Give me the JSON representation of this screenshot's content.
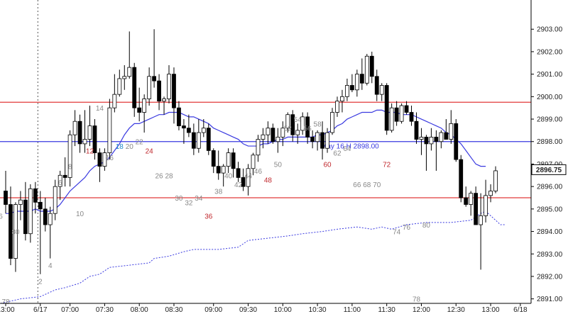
{
  "chart_data": {
    "type": "candlestick",
    "title": "",
    "xlabel": "",
    "ylabel": "",
    "ylim": [
      2890.8,
      2904.3
    ],
    "y_ticks": [
      2891.0,
      2892.0,
      2893.0,
      2894.0,
      2895.0,
      2896.0,
      2897.0,
      2898.0,
      2899.0,
      2900.0,
      2901.0,
      2902.0,
      2903.0
    ],
    "current_price": "2896.75",
    "x_ticks": [
      {
        "label": "13:00",
        "bar": 0
      },
      {
        "label": "6/17",
        "bar": 7
      },
      {
        "label": "07:00",
        "bar": 13
      },
      {
        "label": "07:30",
        "bar": 20
      },
      {
        "label": "08:00",
        "bar": 27
      },
      {
        "label": "08:30",
        "bar": 34
      },
      {
        "label": "09:00",
        "bar": 42
      },
      {
        "label": "09:30",
        "bar": 49
      },
      {
        "label": "10:00",
        "bar": 56
      },
      {
        "label": "10:30",
        "bar": 63
      },
      {
        "label": "11:00",
        "bar": 70
      },
      {
        "label": "11:30",
        "bar": 77
      },
      {
        "label": "12:00",
        "bar": 84
      },
      {
        "label": "12:30",
        "bar": 91
      },
      {
        "label": "13:00",
        "bar": 98
      },
      {
        "label": "6/18",
        "bar": 104
      }
    ],
    "session_divider_bar": 7,
    "horizontal_lines": [
      {
        "y": 2899.75,
        "color": "#e23a3a"
      },
      {
        "y": 2898.0,
        "color": "#3a3ae0",
        "label": "May 16 H 2898.00"
      },
      {
        "y": 2895.5,
        "color": "#e23a3a"
      }
    ],
    "candles": [
      [
        2895.8,
        2896.7,
        2894.8,
        2895.2
      ],
      [
        2895.2,
        2896.0,
        2892.5,
        2892.8
      ],
      [
        2892.8,
        2895.3,
        2892.2,
        2895.2
      ],
      [
        2895.2,
        2895.8,
        2894.5,
        2895.4
      ],
      [
        2895.4,
        2896.2,
        2893.6,
        2893.9
      ],
      [
        2893.9,
        2896.1,
        2893.5,
        2895.9
      ],
      [
        2895.9,
        2896.2,
        2894.8,
        2895.3
      ],
      [
        2895.3,
        2895.8,
        2892.1,
        2895.0
      ],
      [
        2895.0,
        2895.5,
        2894.0,
        2894.3
      ],
      [
        2894.3,
        2895.1,
        2892.8,
        2894.8
      ],
      [
        2894.8,
        2896.3,
        2894.5,
        2896.0
      ],
      [
        2896.0,
        2896.7,
        2895.4,
        2896.5
      ],
      [
        2896.5,
        2897.3,
        2896.0,
        2896.4
      ],
      [
        2896.4,
        2898.5,
        2896.0,
        2898.3
      ],
      [
        2898.3,
        2899.4,
        2897.8,
        2898.9
      ],
      [
        2898.9,
        2899.2,
        2897.5,
        2897.9
      ],
      [
        2897.9,
        2899.4,
        2897.5,
        2898.1
      ],
      [
        2898.1,
        2899.6,
        2897.8,
        2898.7
      ],
      [
        2898.7,
        2899.0,
        2897.2,
        2897.5
      ],
      [
        2897.5,
        2897.7,
        2896.2,
        2896.9
      ],
      [
        2896.9,
        2897.7,
        2896.7,
        2897.5
      ],
      [
        2897.5,
        2899.9,
        2897.2,
        2899.5
      ],
      [
        2899.5,
        2901.0,
        2899.3,
        2900.1
      ],
      [
        2900.1,
        2901.2,
        2900.0,
        2900.8
      ],
      [
        2900.8,
        2901.4,
        2900.3,
        2900.9
      ],
      [
        2900.9,
        2902.9,
        2900.8,
        2901.3
      ],
      [
        2901.3,
        2901.5,
        2899.1,
        2899.5
      ],
      [
        2899.5,
        2900.4,
        2898.9,
        2899.3
      ],
      [
        2899.3,
        2900.1,
        2898.4,
        2899.9
      ],
      [
        2899.9,
        2901.3,
        2899.6,
        2900.9
      ],
      [
        2900.9,
        2903.0,
        2900.4,
        2900.7
      ],
      [
        2900.7,
        2901.0,
        2899.4,
        2899.8
      ],
      [
        2899.8,
        2900.0,
        2899.2,
        2899.9
      ],
      [
        2899.9,
        2901.4,
        2899.7,
        2901.0
      ],
      [
        2901.0,
        2901.3,
        2898.8,
        2899.5
      ],
      [
        2899.5,
        2899.8,
        2898.5,
        2898.7
      ],
      [
        2898.7,
        2899.0,
        2897.9,
        2898.6
      ],
      [
        2898.6,
        2899.2,
        2898.2,
        2898.4
      ],
      [
        2898.4,
        2898.8,
        2897.4,
        2897.7
      ],
      [
        2897.7,
        2899.0,
        2897.5,
        2898.4
      ],
      [
        2898.4,
        2899.0,
        2898.2,
        2898.6
      ],
      [
        2898.6,
        2898.8,
        2897.4,
        2897.6
      ],
      [
        2897.6,
        2897.7,
        2896.6,
        2896.9
      ],
      [
        2896.9,
        2897.6,
        2896.3,
        2896.6
      ],
      [
        2896.6,
        2897.0,
        2896.0,
        2896.9
      ],
      [
        2896.9,
        2897.7,
        2896.6,
        2897.5
      ],
      [
        2897.5,
        2897.7,
        2896.4,
        2896.8
      ],
      [
        2896.8,
        2897.1,
        2896.2,
        2896.4
      ],
      [
        2896.4,
        2896.8,
        2895.8,
        2896.0
      ],
      [
        2896.0,
        2897.0,
        2895.6,
        2896.8
      ],
      [
        2896.8,
        2897.5,
        2896.5,
        2897.4
      ],
      [
        2897.4,
        2898.3,
        2897.1,
        2898.1
      ],
      [
        2898.1,
        2898.6,
        2897.7,
        2898.3
      ],
      [
        2898.3,
        2898.9,
        2897.9,
        2898.6
      ],
      [
        2898.6,
        2898.8,
        2897.9,
        2898.0
      ],
      [
        2898.0,
        2898.6,
        2897.5,
        2898.2
      ],
      [
        2898.2,
        2898.9,
        2897.8,
        2898.6
      ],
      [
        2898.6,
        2899.3,
        2898.4,
        2899.2
      ],
      [
        2899.2,
        2899.4,
        2898.0,
        2898.3
      ],
      [
        2898.3,
        2898.8,
        2897.9,
        2898.5
      ],
      [
        2898.5,
        2899.3,
        2898.3,
        2899.1
      ],
      [
        2899.1,
        2899.3,
        2897.9,
        2898.2
      ],
      [
        2898.2,
        2898.5,
        2897.7,
        2898.0
      ],
      [
        2898.0,
        2898.5,
        2897.6,
        2898.4
      ],
      [
        2898.4,
        2898.9,
        2897.2,
        2897.7
      ],
      [
        2897.7,
        2898.6,
        2897.5,
        2898.4
      ],
      [
        2898.4,
        2899.5,
        2898.3,
        2899.3
      ],
      [
        2899.3,
        2900.0,
        2899.1,
        2899.8
      ],
      [
        2899.8,
        2900.3,
        2899.3,
        2900.0
      ],
      [
        2900.0,
        2900.8,
        2899.8,
        2900.5
      ],
      [
        2900.5,
        2901.0,
        2900.2,
        2900.3
      ],
      [
        2900.3,
        2901.2,
        2900.0,
        2901.0
      ],
      [
        2901.0,
        2901.7,
        2900.3,
        2900.6
      ],
      [
        2900.6,
        2901.9,
        2900.5,
        2901.8
      ],
      [
        2901.8,
        2902.0,
        2900.6,
        2900.9
      ],
      [
        2900.9,
        2901.2,
        2899.8,
        2900.1
      ],
      [
        2900.1,
        2900.6,
        2899.8,
        2900.5
      ],
      [
        2900.5,
        2900.6,
        2898.3,
        2898.5
      ],
      [
        2898.5,
        2899.7,
        2898.4,
        2899.5
      ],
      [
        2899.5,
        2899.8,
        2898.7,
        2898.9
      ],
      [
        2898.9,
        2899.7,
        2898.8,
        2899.6
      ],
      [
        2899.6,
        2899.8,
        2899.2,
        2899.3
      ],
      [
        2899.3,
        2899.6,
        2898.7,
        2898.9
      ],
      [
        2898.9,
        2899.3,
        2897.9,
        2898.1
      ],
      [
        2898.1,
        2898.6,
        2897.4,
        2898.2
      ],
      [
        2898.2,
        2898.3,
        2896.7,
        2897.9
      ],
      [
        2897.9,
        2898.6,
        2897.6,
        2898.2
      ],
      [
        2898.2,
        2898.5,
        2896.7,
        2898.0
      ],
      [
        2898.0,
        2898.5,
        2897.7,
        2898.4
      ],
      [
        2898.4,
        2899.0,
        2898.1,
        2898.1
      ],
      [
        2898.1,
        2899.4,
        2897.9,
        2898.8
      ],
      [
        2898.8,
        2899.0,
        2897.1,
        2897.2
      ],
      [
        2897.2,
        2897.4,
        2895.3,
        2895.5
      ],
      [
        2895.5,
        2896.0,
        2895.1,
        2895.2
      ],
      [
        2895.2,
        2895.8,
        2894.7,
        2895.7
      ],
      [
        2895.7,
        2896.0,
        2894.3,
        2894.3
      ],
      [
        2894.3,
        2895.7,
        2892.3,
        2894.7
      ],
      [
        2894.7,
        2896.3,
        2894.4,
        2895.6
      ],
      [
        2895.6,
        2896.1,
        2895.3,
        2895.8
      ],
      [
        2895.8,
        2896.9,
        2895.7,
        2896.7
      ]
    ],
    "ema": [
      2894.8,
      2894.8,
      2894.9,
      2894.9,
      2894.9,
      2894.9,
      2895.0,
      2894.9,
      2894.9,
      2894.9,
      2895.0,
      2895.2,
      2895.5,
      2895.8,
      2896.0,
      2896.2,
      2896.4,
      2896.7,
      2896.9,
      2897.0,
      2897.1,
      2897.3,
      2897.6,
      2897.9,
      2898.3,
      2898.6,
      2898.8,
      2898.8,
      2898.9,
      2899.0,
      2899.1,
      2899.2,
      2899.2,
      2899.3,
      2899.3,
      2899.3,
      2899.2,
      2899.1,
      2899.1,
      2899.0,
      2898.9,
      2898.8,
      2898.6,
      2898.5,
      2898.4,
      2898.3,
      2898.2,
      2898.1,
      2897.9,
      2897.8,
      2897.8,
      2897.8,
      2897.9,
      2897.9,
      2898.0,
      2898.1,
      2898.1,
      2898.2,
      2898.2,
      2898.2,
      2898.2,
      2898.2,
      2898.2,
      2898.3,
      2898.3,
      2898.4,
      2898.5,
      2898.7,
      2898.8,
      2899.0,
      2899.1,
      2899.2,
      2899.3,
      2899.3,
      2899.3,
      2899.4,
      2899.4,
      2899.3,
      2899.3,
      2899.3,
      2899.2,
      2899.2,
      2899.2,
      2899.1,
      2899.0,
      2898.9,
      2898.8,
      2898.7,
      2898.6,
      2898.4,
      2898.3,
      2898.1,
      2897.9,
      2897.6,
      2897.3,
      2897.0,
      2896.9,
      2896.9
    ],
    "ema_start_bar": 0,
    "cumulative_line": [
      [
        -1,
        2890.8
      ],
      [
        3,
        2891.0
      ],
      [
        7,
        2891.1
      ],
      [
        10,
        2891.4
      ],
      [
        12,
        2891.5
      ],
      [
        15,
        2891.7
      ],
      [
        17,
        2892.0
      ],
      [
        19,
        2892.1
      ],
      [
        21,
        2892.4
      ],
      [
        25,
        2892.5
      ],
      [
        29,
        2892.6
      ],
      [
        30,
        2892.8
      ],
      [
        33,
        2892.9
      ],
      [
        36,
        2893.1
      ],
      [
        38,
        2893.2
      ],
      [
        43,
        2893.2
      ],
      [
        47,
        2893.3
      ],
      [
        49,
        2893.6
      ],
      [
        53,
        2893.7
      ],
      [
        57,
        2893.8
      ],
      [
        60,
        2893.9
      ],
      [
        64,
        2894.0
      ],
      [
        67,
        2894.1
      ],
      [
        71,
        2894.2
      ],
      [
        74,
        2894.1
      ],
      [
        76,
        2894.2
      ],
      [
        78,
        2894.1
      ],
      [
        81,
        2894.3
      ],
      [
        85,
        2894.4
      ],
      [
        90,
        2894.4
      ],
      [
        94,
        2894.5
      ],
      [
        96,
        2894.8
      ],
      [
        97,
        2894.9
      ],
      [
        100,
        2894.3
      ],
      [
        101,
        2894.3
      ]
    ],
    "bar_labels": [
      {
        "text": "78",
        "bar": 0,
        "y": 2890.9,
        "color": "#888888"
      },
      {
        "text": "80",
        "bar": 2,
        "y": 2894.0,
        "color": "#888888"
      },
      {
        "text": "2",
        "bar": 7,
        "y": 2891.8,
        "color": "#888888"
      },
      {
        "text": "4",
        "bar": 9,
        "y": 2892.5,
        "color": "#888888"
      },
      {
        "text": "6",
        "bar": 11,
        "y": 2896.2,
        "color": "#888888"
      },
      {
        "text": "8",
        "bar": 13,
        "y": 2896.9,
        "color": "#888888"
      },
      {
        "text": "10",
        "bar": 15,
        "y": 2894.8,
        "color": "#888888"
      },
      {
        "text": "12",
        "bar": 17,
        "y": 2897.6,
        "color": "#c0282d"
      },
      {
        "text": "14",
        "bar": 19,
        "y": 2899.5,
        "color": "#888888"
      },
      {
        "text": "16",
        "bar": 21,
        "y": 2897.3,
        "color": "#888888"
      },
      {
        "text": "18",
        "bar": 23,
        "y": 2897.8,
        "color": "#1e88c8"
      },
      {
        "text": "20",
        "bar": 25,
        "y": 2897.8,
        "color": "#888888"
      },
      {
        "text": "22",
        "bar": 27,
        "y": 2898.0,
        "color": "#888888"
      },
      {
        "text": "24",
        "bar": 29,
        "y": 2897.6,
        "color": "#c0282d"
      },
      {
        "text": "26",
        "bar": 31,
        "y": 2896.5,
        "color": "#888888"
      },
      {
        "text": "28",
        "bar": 33,
        "y": 2896.5,
        "color": "#888888"
      },
      {
        "text": "30",
        "bar": 35,
        "y": 2895.5,
        "color": "#888888"
      },
      {
        "text": "32",
        "bar": 37,
        "y": 2895.3,
        "color": "#888888"
      },
      {
        "text": "34",
        "bar": 39,
        "y": 2895.5,
        "color": "#888888"
      },
      {
        "text": "36",
        "bar": 41,
        "y": 2894.7,
        "color": "#c0282d"
      },
      {
        "text": "38",
        "bar": 43,
        "y": 2895.8,
        "color": "#888888"
      },
      {
        "text": "40",
        "bar": 45,
        "y": 2896.5,
        "color": "#888888"
      },
      {
        "text": "42",
        "bar": 47,
        "y": 2896.1,
        "color": "#888888"
      },
      {
        "text": "44",
        "bar": 49,
        "y": 2896.5,
        "color": "#888888"
      },
      {
        "text": "46",
        "bar": 51,
        "y": 2896.7,
        "color": "#888888"
      },
      {
        "text": "48",
        "bar": 53,
        "y": 2896.3,
        "color": "#c0282d"
      },
      {
        "text": "50",
        "bar": 55,
        "y": 2897.0,
        "color": "#888888"
      },
      {
        "text": "52",
        "bar": 57,
        "y": 2898.6,
        "color": "#888888"
      },
      {
        "text": "54",
        "bar": 59,
        "y": 2899.0,
        "color": "#888888"
      },
      {
        "text": "56",
        "bar": 61,
        "y": 2898.6,
        "color": "#888888"
      },
      {
        "text": "58",
        "bar": 63,
        "y": 2898.8,
        "color": "#888888"
      },
      {
        "text": "60",
        "bar": 65,
        "y": 2897.0,
        "color": "#c0282d"
      },
      {
        "text": "62",
        "bar": 67,
        "y": 2897.5,
        "color": "#888888"
      },
      {
        "text": "64",
        "bar": 69,
        "y": 2897.7,
        "color": "#888888"
      },
      {
        "text": "66",
        "bar": 71,
        "y": 2896.1,
        "color": "#888888"
      },
      {
        "text": "68",
        "bar": 73,
        "y": 2896.1,
        "color": "#888888"
      },
      {
        "text": "70",
        "bar": 75,
        "y": 2896.1,
        "color": "#888888"
      },
      {
        "text": "72",
        "bar": 77,
        "y": 2897.0,
        "color": "#c0282d"
      },
      {
        "text": "74",
        "bar": 79,
        "y": 2894.0,
        "color": "#888888"
      },
      {
        "text": "76",
        "bar": 81,
        "y": 2894.2,
        "color": "#888888"
      },
      {
        "text": "78",
        "bar": 83,
        "y": 2891.0,
        "color": "#888888"
      },
      {
        "text": "80",
        "bar": 85,
        "y": 2894.3,
        "color": "#888888"
      },
      {
        "text": "6",
        "bar": -1,
        "y": 2894.7,
        "color": "#888888"
      }
    ],
    "colors": {
      "up_body": "#ffffff",
      "down_body": "#000000",
      "candle_outline": "#000000",
      "ema": "#3a3ae0",
      "cumulative": "#3a3ae0",
      "resistance": "#e23a3a",
      "support": "#3a3ae0",
      "price_box": "#ffffff"
    }
  }
}
